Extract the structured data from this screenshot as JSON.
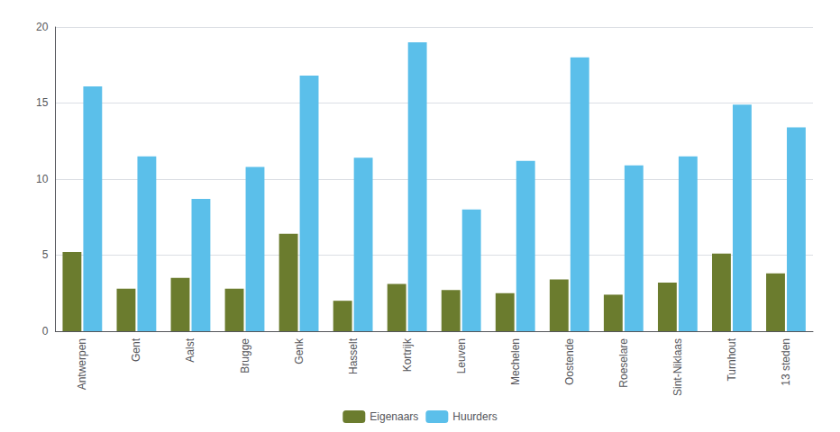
{
  "chart_data": {
    "type": "bar",
    "categories": [
      "Antwerpen",
      "Gent",
      "Aalst",
      "Brugge",
      "Genk",
      "Hasselt",
      "Kortrijk",
      "Leuven",
      "Mechelen",
      "Oostende",
      "Roeselare",
      "Sint-Niklaas",
      "Turnhout",
      "13 steden"
    ],
    "series": [
      {
        "name": "Eigenaars",
        "color": "#6b7c2e",
        "values": [
          5.2,
          2.8,
          3.5,
          2.8,
          6.4,
          2.0,
          3.1,
          2.7,
          2.5,
          3.4,
          2.4,
          3.2,
          5.1,
          3.8
        ]
      },
      {
        "name": "Huurders",
        "color": "#5bbfea",
        "values": [
          16.1,
          11.5,
          8.7,
          10.8,
          16.8,
          11.4,
          19.0,
          8.0,
          11.2,
          18.0,
          10.9,
          11.5,
          14.9,
          13.4
        ]
      }
    ],
    "ylim": [
      0,
      20
    ],
    "yticks": [
      0,
      5,
      10,
      15,
      20
    ],
    "grid": true,
    "legend": "bottom"
  }
}
